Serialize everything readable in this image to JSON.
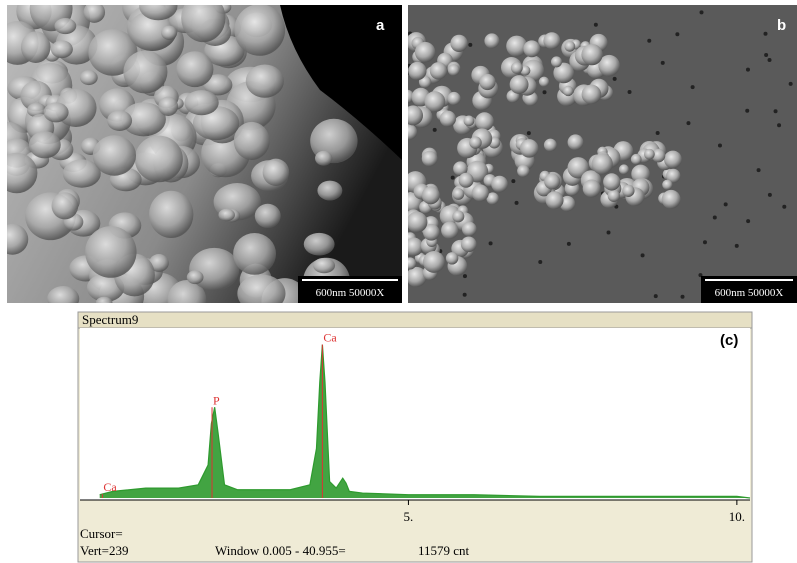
{
  "panels": [
    {
      "label": "a",
      "scale_bar": "600nm 50000X"
    },
    {
      "label": "b",
      "scale_bar": "600nm 50000X"
    }
  ],
  "chart_data": {
    "type": "area",
    "title": "Spectrum9",
    "panel_label": "(c)",
    "x": [
      0.3,
      0.5,
      1.0,
      1.5,
      1.8,
      1.95,
      2.0,
      2.05,
      2.1,
      2.2,
      2.4,
      2.8,
      3.2,
      3.5,
      3.6,
      3.65,
      3.69,
      3.73,
      3.8,
      3.9,
      4.0,
      4.05,
      4.1,
      4.3,
      5,
      6,
      7,
      8,
      9,
      10,
      10.2
    ],
    "values": [
      2,
      4,
      6,
      6,
      8,
      20,
      45,
      55,
      40,
      8,
      5,
      5,
      5,
      8,
      30,
      70,
      93,
      70,
      10,
      6,
      12,
      9,
      4,
      3,
      2,
      2,
      1,
      1,
      1,
      1,
      0
    ],
    "color": "#2e9a2e",
    "xlim": [
      0,
      10.2
    ],
    "ylim": [
      0,
      100
    ],
    "xticks": [
      {
        "value": 5,
        "label": "5."
      },
      {
        "value": 10,
        "label": "10."
      }
    ],
    "annotations": [
      {
        "label": "Ca",
        "x": 0.34
      },
      {
        "label": "P",
        "x": 2.01
      },
      {
        "label": "Ca",
        "x": 3.69
      }
    ],
    "footer": {
      "cursor": "Cursor=",
      "vert": "Vert=239",
      "window": "Window 0.005 - 40.955=",
      "counts": "11579 cnt"
    }
  }
}
